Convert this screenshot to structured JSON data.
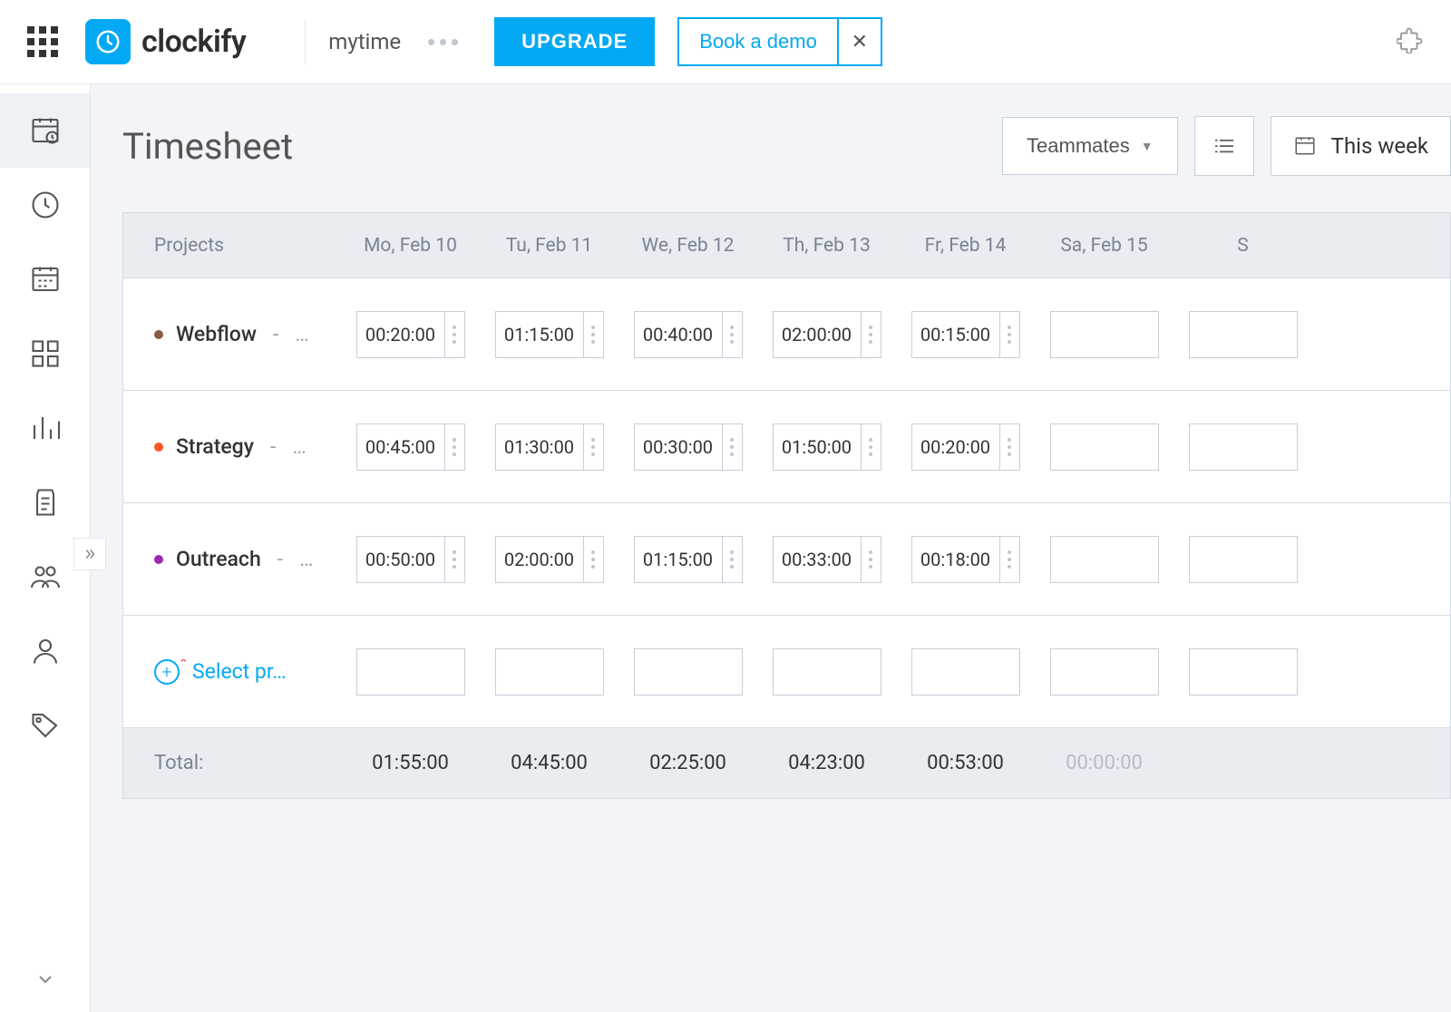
{
  "header": {
    "brand": "clockify",
    "workspace": "mytime",
    "upgrade_label": "UPGRADE",
    "demo_label": "Book a demo"
  },
  "page": {
    "title": "Timesheet",
    "teammates_label": "Teammates",
    "week_label": "This week"
  },
  "columns": {
    "projects": "Projects",
    "days": [
      "Mo, Feb 10",
      "Tu, Feb 11",
      "We, Feb 12",
      "Th, Feb 13",
      "Fr, Feb 14",
      "Sa, Feb 15",
      "S"
    ]
  },
  "rows": [
    {
      "name": "Webflow",
      "dot_color": "#8a5a44",
      "suffix": "…",
      "times": [
        "00:20:00",
        "01:15:00",
        "00:40:00",
        "02:00:00",
        "00:15:00",
        "",
        ""
      ]
    },
    {
      "name": "Strategy",
      "dot_color": "#ff5722",
      "suffix": "…",
      "times": [
        "00:45:00",
        "01:30:00",
        "00:30:00",
        "01:50:00",
        "00:20:00",
        "",
        ""
      ]
    },
    {
      "name": "Outreach",
      "dot_color": "#9c27b0",
      "suffix": "…",
      "times": [
        "00:50:00",
        "02:00:00",
        "01:15:00",
        "00:33:00",
        "00:18:00",
        "",
        ""
      ]
    }
  ],
  "select_project_label": "Select pr…",
  "totals": {
    "label": "Total:",
    "values": [
      "01:55:00",
      "04:45:00",
      "02:25:00",
      "04:23:00",
      "00:53:00",
      "00:00:00",
      ""
    ]
  },
  "colors": {
    "accent": "#03a9f4",
    "page_bg": "#f2f4f7",
    "header_sheet_bg": "#e9ecf1",
    "border": "#d6dbe3"
  }
}
